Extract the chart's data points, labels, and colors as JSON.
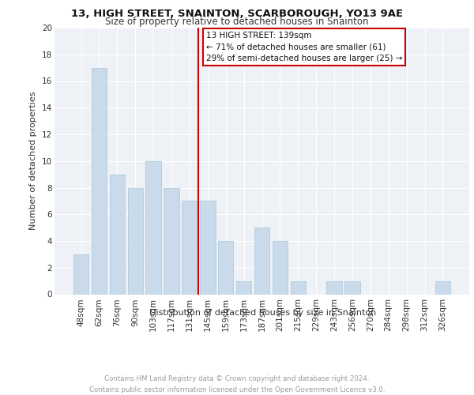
{
  "title1": "13, HIGH STREET, SNAINTON, SCARBOROUGH, YO13 9AE",
  "title2": "Size of property relative to detached houses in Snainton",
  "xlabel": "Distribution of detached houses by size in Snainton",
  "ylabel": "Number of detached properties",
  "categories": [
    "48sqm",
    "62sqm",
    "76sqm",
    "90sqm",
    "103sqm",
    "117sqm",
    "131sqm",
    "145sqm",
    "159sqm",
    "173sqm",
    "187sqm",
    "201sqm",
    "215sqm",
    "229sqm",
    "243sqm",
    "256sqm",
    "270sqm",
    "284sqm",
    "298sqm",
    "312sqm",
    "326sqm"
  ],
  "values": [
    3,
    17,
    9,
    8,
    10,
    8,
    7,
    7,
    4,
    1,
    5,
    4,
    1,
    0,
    1,
    1,
    0,
    0,
    0,
    0,
    1
  ],
  "bar_color": "#c9daea",
  "bar_edge_color": "#a8c4d8",
  "vline_color": "#cc0000",
  "annotation_box_color": "#cc0000",
  "background_color": "#eef2f7",
  "grid_color": "#ffffff",
  "footer_text": "Contains HM Land Registry data © Crown copyright and database right 2024.\nContains public sector information licensed under the Open Government Licence v3.0.",
  "ylim": [
    0,
    20
  ],
  "yticks": [
    0,
    2,
    4,
    6,
    8,
    10,
    12,
    14,
    16,
    18,
    20
  ],
  "vline_pos": 6.5
}
